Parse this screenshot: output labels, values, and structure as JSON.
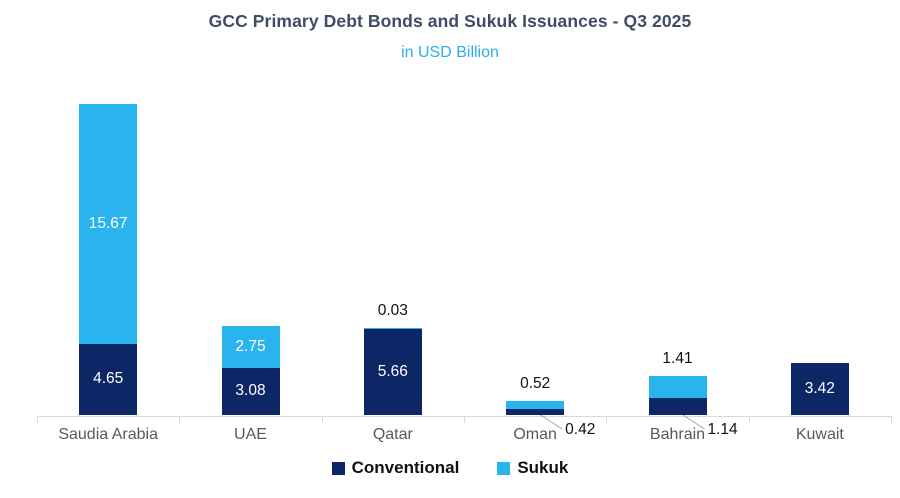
{
  "title": "GCC Primary Debt Bonds and Sukuk Issuances - Q3 2025",
  "subtitle": "in USD Billion",
  "legend": {
    "items": [
      {
        "label": "Conventional",
        "color": "#0D2666"
      },
      {
        "label": "Sukuk",
        "color": "#2AB4ED"
      }
    ],
    "position": "bottom"
  },
  "colors": {
    "conventional": "#0D2666",
    "sukuk": "#2AB4ED",
    "title": "#404C66",
    "subtitle": "#29AEE6",
    "axis_labels": "#595959",
    "axis_line": "#D9D9D9",
    "leader_line": "#A6A6A6",
    "data_label_inside": "#FFFFFF",
    "data_label_outside": "#111111"
  },
  "chart_data": {
    "type": "bar",
    "stacked": true,
    "title": "GCC Primary Debt Bonds and Sukuk Issuances - Q3 2025",
    "subtitle": "in USD Billion",
    "categories": [
      "Saudia Arabia",
      "UAE",
      "Qatar",
      "Oman",
      "Bahrain",
      "Kuwait"
    ],
    "series": [
      {
        "name": "Conventional",
        "color": "#0D2666",
        "values": [
          4.65,
          3.08,
          5.66,
          0.42,
          1.14,
          3.42
        ]
      },
      {
        "name": "Sukuk",
        "color": "#2AB4ED",
        "values": [
          15.67,
          2.75,
          0.03,
          0.52,
          1.41,
          0
        ]
      }
    ],
    "totals": [
      20.32,
      5.83,
      5.69,
      0.94,
      2.55,
      3.42
    ],
    "ylim": [
      0,
      20.32
    ],
    "grid": false,
    "y_axis_visible": false,
    "legend_position": "bottom",
    "data_labels": "two-decimals, white inside large segments, black above/with leader line for small segments"
  }
}
